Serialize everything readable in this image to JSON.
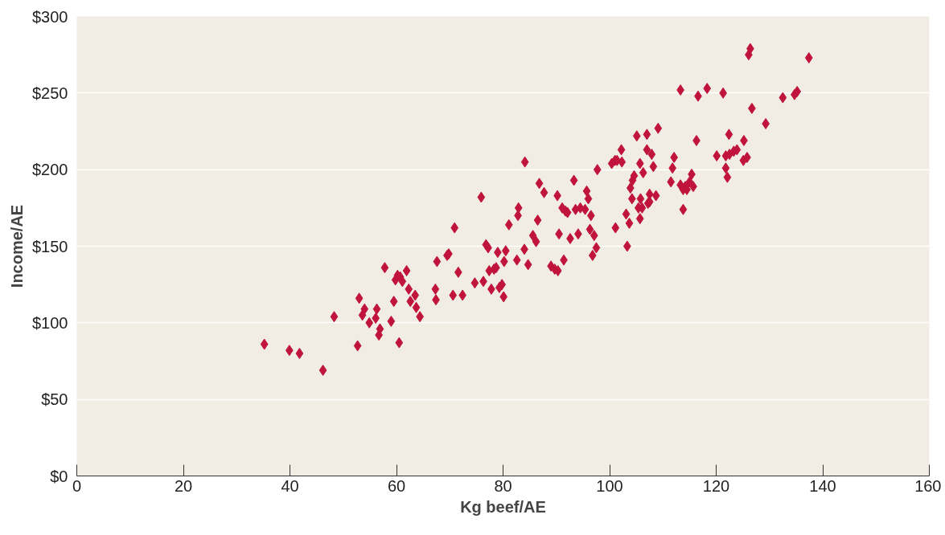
{
  "chart_data": {
    "type": "scatter",
    "xlabel": "Kg beef/AE",
    "ylabel": "Income/AE",
    "marker": "diamond",
    "grid": "y",
    "xlim": [
      0,
      160
    ],
    "ylim": [
      0,
      300
    ],
    "xticks": [
      0,
      20,
      40,
      60,
      80,
      100,
      120,
      140,
      160
    ],
    "yticks": [
      {
        "value": 0,
        "label": "$0"
      },
      {
        "value": 50,
        "label": "$50"
      },
      {
        "value": 100,
        "label": "$100"
      },
      {
        "value": 150,
        "label": "$150"
      },
      {
        "value": 200,
        "label": "$200"
      },
      {
        "value": 250,
        "label": "$250"
      },
      {
        "value": 300,
        "label": "$300"
      }
    ],
    "series": [
      {
        "color": "#c0143c",
        "x": [
          35.2,
          39.9,
          41.8,
          46.2,
          48.3,
          52.7,
          53.0,
          53.6,
          54.0,
          54.9,
          56.1,
          56.3,
          56.7,
          56.9,
          57.8,
          59.0,
          59.5,
          59.8,
          60.2,
          60.5,
          60.7,
          61.1,
          61.9,
          62.3,
          62.6,
          63.5,
          63.7,
          64.4,
          67.4,
          67.6,
          67.3,
          69.5,
          69.8,
          70.6,
          70.9,
          71.6,
          72.4,
          74.7,
          75.9,
          76.3,
          76.8,
          77.2,
          77.4,
          77.8,
          78.3,
          78.7,
          79.0,
          79.3,
          79.8,
          80.1,
          80.2,
          80.5,
          81.1,
          82.6,
          82.8,
          82.9,
          84.0,
          84.1,
          84.7,
          85.6,
          86.2,
          86.5,
          86.8,
          87.7,
          89.0,
          89.7,
          90.2,
          90.5,
          90.3,
          91.1,
          91.4,
          91.7,
          92.1,
          92.6,
          93.3,
          93.6,
          94.1,
          94.5,
          95.4,
          95.7,
          96.0,
          96.3,
          96.5,
          96.8,
          97.1,
          97.5,
          97.7,
          100.4,
          101.0,
          101.1,
          101.4,
          102.2,
          102.3,
          103.1,
          103.3,
          103.7,
          103.9,
          104.2,
          104.3,
          104.6,
          105.1,
          105.4,
          105.7,
          105.7,
          105.8,
          106.1,
          106.3,
          107.0,
          107.0,
          107.2,
          107.5,
          107.5,
          107.9,
          108.2,
          108.7,
          109.1,
          111.5,
          111.8,
          112.1,
          113.3,
          113.3,
          113.8,
          113.8,
          114.2,
          114.5,
          115.0,
          115.4,
          115.7,
          116.3,
          116.6,
          118.3,
          120.1,
          121.3,
          121.8,
          121.8,
          122.1,
          122.4,
          122.5,
          123.3,
          123.9,
          125.2,
          125.1,
          125.8,
          126.1,
          126.4,
          126.7,
          129.3,
          132.5,
          134.7,
          135.2,
          137.4
        ],
        "values": [
          86,
          82,
          80,
          69,
          104,
          85,
          116,
          105,
          109,
          100,
          103,
          109,
          92,
          96,
          136,
          101,
          114,
          128,
          131,
          87,
          130,
          127,
          134,
          122,
          114,
          118,
          110,
          104,
          115,
          140,
          122,
          144,
          145,
          118,
          162,
          133,
          118,
          126,
          182,
          127,
          151,
          149,
          134,
          122,
          135,
          136,
          146,
          123,
          125,
          117,
          140,
          147,
          164,
          141,
          170,
          175,
          148,
          205,
          138,
          157,
          153,
          167,
          191,
          185,
          137,
          135,
          183,
          158,
          134,
          175,
          141,
          173,
          172,
          155,
          193,
          174,
          158,
          175,
          174,
          186,
          181,
          161,
          170,
          144,
          157,
          149,
          200,
          204,
          206,
          162,
          206,
          213,
          205,
          171,
          150,
          165,
          188,
          181,
          193,
          196,
          222,
          175,
          204,
          168,
          181,
          175,
          198,
          223,
          213,
          178,
          179,
          184,
          210,
          202,
          183,
          227,
          192,
          201,
          208,
          252,
          190,
          174,
          187,
          189,
          187,
          192,
          197,
          189,
          219,
          248,
          253,
          209,
          250,
          209,
          201,
          195,
          223,
          210,
          212,
          213,
          219,
          206,
          208,
          275,
          279,
          240,
          230,
          247,
          249,
          251,
          273
        ]
      }
    ]
  }
}
